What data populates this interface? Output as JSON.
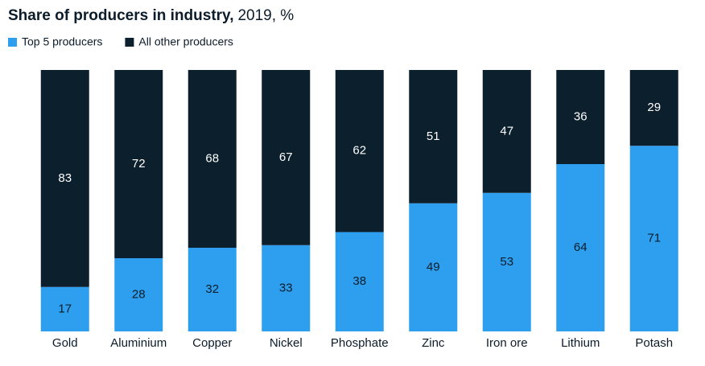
{
  "chart_data": {
    "type": "bar",
    "stacked": true,
    "title": "Share of producers in industry,",
    "subtitle": "2019, %",
    "categories": [
      "Gold",
      "Aluminium",
      "Copper",
      "Nickel",
      "Phosphate",
      "Zinc",
      "Iron ore",
      "Lithium",
      "Potash"
    ],
    "series": [
      {
        "name": "Top 5 producers",
        "color": "#2e9fee",
        "label_color": "#0b1c2b",
        "values": [
          17,
          28,
          32,
          33,
          38,
          49,
          53,
          64,
          71
        ]
      },
      {
        "name": "All other producers",
        "color": "#0c1f2d",
        "label_color": "#ffffff",
        "values": [
          83,
          72,
          68,
          67,
          62,
          51,
          47,
          36,
          29
        ]
      }
    ],
    "ylim": [
      0,
      100
    ]
  }
}
